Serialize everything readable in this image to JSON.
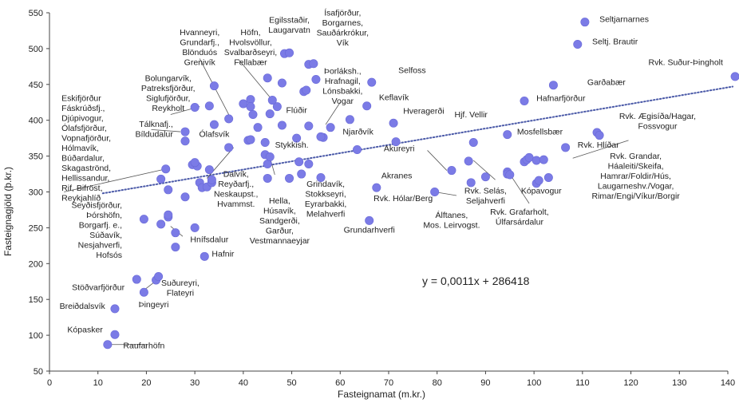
{
  "chart_data": {
    "type": "scatter",
    "xlabel": "Fasteignamat (m.kr.)",
    "ylabel": "Fasteignagjöld (þ.kr.)",
    "xlim": [
      0,
      140
    ],
    "ylim": [
      50,
      550
    ],
    "xticks": [
      0,
      10,
      20,
      30,
      40,
      50,
      60,
      70,
      80,
      90,
      100,
      110,
      120,
      130,
      140
    ],
    "yticks": [
      50,
      100,
      150,
      200,
      250,
      300,
      350,
      400,
      450,
      500,
      550
    ],
    "grid": false,
    "legend": "none",
    "point_color": "#7b7be6",
    "trendline": {
      "slope": 0.0011,
      "intercept": 286418,
      "x_from": 11,
      "x_to": 141,
      "y_from": 298,
      "y_to": 447,
      "color": "#4b5aa8",
      "style": "dotted"
    },
    "equation": "y = 0,0011x + 286418",
    "points": [
      [
        12,
        87
      ],
      [
        13.5,
        101
      ],
      [
        13.5,
        137
      ],
      [
        18,
        178
      ],
      [
        19.5,
        160
      ],
      [
        22,
        177
      ],
      [
        22.5,
        182
      ],
      [
        19.5,
        262
      ],
      [
        23,
        255
      ],
      [
        24.5,
        265
      ],
      [
        24.5,
        268
      ],
      [
        26,
        243
      ],
      [
        26,
        223
      ],
      [
        30,
        250
      ],
      [
        32,
        210
      ],
      [
        23,
        318
      ],
      [
        24.5,
        303
      ],
      [
        24,
        332
      ],
      [
        28,
        293
      ],
      [
        29.5,
        338
      ],
      [
        30.5,
        336
      ],
      [
        31,
        313
      ],
      [
        31.5,
        306
      ],
      [
        32.5,
        307
      ],
      [
        33.5,
        313
      ],
      [
        33.5,
        317
      ],
      [
        33,
        331
      ],
      [
        30,
        341
      ],
      [
        28,
        371
      ],
      [
        28,
        384
      ],
      [
        30,
        418
      ],
      [
        33,
        420
      ],
      [
        34,
        394
      ],
      [
        37,
        362
      ],
      [
        41,
        372
      ],
      [
        43,
        390
      ],
      [
        41.5,
        373
      ],
      [
        44.5,
        369
      ],
      [
        44.5,
        352
      ],
      [
        45,
        339
      ],
      [
        45.5,
        349
      ],
      [
        45,
        319
      ],
      [
        49.5,
        319
      ],
      [
        51.5,
        342
      ],
      [
        52,
        325
      ],
      [
        53.5,
        339
      ],
      [
        56,
        320
      ],
      [
        47,
        419
      ],
      [
        46,
        428
      ],
      [
        40,
        423
      ],
      [
        41.5,
        429
      ],
      [
        41.5,
        419
      ],
      [
        42,
        408
      ],
      [
        34,
        448
      ],
      [
        37,
        402
      ],
      [
        45,
        459
      ],
      [
        48,
        452
      ],
      [
        48.5,
        493
      ],
      [
        49.5,
        494
      ],
      [
        51,
        375
      ],
      [
        48,
        393
      ],
      [
        45.5,
        409
      ],
      [
        52.5,
        440
      ],
      [
        53,
        442
      ],
      [
        53.5,
        478
      ],
      [
        54.5,
        479
      ],
      [
        55,
        457
      ],
      [
        53.5,
        392
      ],
      [
        56.5,
        376
      ],
      [
        56,
        377
      ],
      [
        58,
        390
      ],
      [
        62,
        401
      ],
      [
        63.5,
        359
      ],
      [
        65.5,
        420
      ],
      [
        66.5,
        453
      ],
      [
        71.5,
        370
      ],
      [
        71,
        396
      ],
      [
        66,
        260
      ],
      [
        67.5,
        306
      ],
      [
        79.5,
        300
      ],
      [
        83,
        330
      ],
      [
        86.5,
        343
      ],
      [
        87,
        313
      ],
      [
        87.5,
        369
      ],
      [
        90,
        321
      ],
      [
        94.5,
        380
      ],
      [
        94.5,
        328
      ],
      [
        94.5,
        325
      ],
      [
        95,
        324
      ],
      [
        98,
        342
      ],
      [
        98.5,
        345
      ],
      [
        99,
        348
      ],
      [
        100.5,
        312
      ],
      [
        100.5,
        344
      ],
      [
        101,
        316
      ],
      [
        102,
        345
      ],
      [
        103,
        320
      ],
      [
        106.5,
        362
      ],
      [
        98,
        427
      ],
      [
        104,
        449
      ],
      [
        110.5,
        537
      ],
      [
        109,
        506
      ],
      [
        113,
        383
      ],
      [
        113.5,
        379
      ],
      [
        141.5,
        461
      ]
    ],
    "labels": [
      {
        "lines": [
          "Egilsstaðir,",
          "Laugarvatn"
        ],
        "x": 49.5,
        "y": 536,
        "anchor": "middle"
      },
      {
        "lines": [
          "Ísafjörður,",
          "Borgarnes,",
          "Sauðárkrókur,",
          "Vík"
        ],
        "x": 60.5,
        "y": 546,
        "anchor": "middle"
      },
      {
        "lines": [
          "Seltjarnarnes"
        ],
        "x": 113.5,
        "y": 537,
        "anchor": "start"
      },
      {
        "lines": [
          "Seltj. Brautir"
        ],
        "x": 112,
        "y": 506,
        "anchor": "start"
      },
      {
        "lines": [
          "Rvk. Suður-Þingholt"
        ],
        "x": 139,
        "y": 477,
        "anchor": "end"
      },
      {
        "lines": [
          "Hvanneyri,",
          "Grundarfj.,",
          "Blönduós",
          "Grenivík"
        ],
        "x": 31,
        "y": 519,
        "anchor": "middle"
      },
      {
        "lines": [
          "Höfn,",
          "Hvolsvöllur,",
          "Svalbarðseyri,",
          "Fellabær"
        ],
        "x": 41.5,
        "y": 519,
        "anchor": "middle"
      },
      {
        "lines": [
          "Þorláksh.,",
          "Hrafnagil,",
          "Lónsbakki,",
          "Vogar"
        ],
        "x": 60.5,
        "y": 465,
        "anchor": "middle"
      },
      {
        "lines": [
          "Selfoss"
        ],
        "x": 72,
        "y": 466,
        "anchor": "start"
      },
      {
        "lines": [
          "Garðabær"
        ],
        "x": 111,
        "y": 449,
        "anchor": "start"
      },
      {
        "lines": [
          "Bolungarvík,",
          "Patreksfjörður,",
          "Siglufjörður,",
          "Reykholt"
        ],
        "x": 24.5,
        "y": 455,
        "anchor": "middle"
      },
      {
        "lines": [
          "Eskifjörður",
          "Fáskrúðsfj.,",
          "Djúpivogur,",
          "Ólafsfjörður,",
          "Vopnafjörður,",
          "Hólmavík,",
          "Búðardalur,",
          "Skagaströnd,",
          "Hellissandur,",
          "Rif, Bifröst,",
          "Reykjahlíð"
        ],
        "x": 2.5,
        "y": 427,
        "anchor": "start"
      },
      {
        "lines": [
          "Keflavík"
        ],
        "x": 68,
        "y": 428,
        "anchor": "start"
      },
      {
        "lines": [
          "Hafnarfjörður"
        ],
        "x": 100.5,
        "y": 427,
        "anchor": "start"
      },
      {
        "lines": [
          "Flúðir"
        ],
        "x": 51,
        "y": 410,
        "anchor": "middle"
      },
      {
        "lines": [
          "Hjf. Vellir"
        ],
        "x": 87,
        "y": 404,
        "anchor": "middle"
      },
      {
        "lines": [
          "Hveragerði"
        ],
        "x": 73,
        "y": 409,
        "anchor": "start"
      },
      {
        "lines": [
          "Rvk. Ægisíða/Hagar,",
          "Fossvogur"
        ],
        "x": 125.5,
        "y": 402,
        "anchor": "middle"
      },
      {
        "lines": [
          "Tálknafj.,",
          "Bíldudalur"
        ],
        "x": 25.5,
        "y": 391,
        "anchor": "end"
      },
      {
        "lines": [
          "Ólafsvík"
        ],
        "x": 34,
        "y": 377,
        "anchor": "middle"
      },
      {
        "lines": [
          "Njarðvík"
        ],
        "x": 60.5,
        "y": 380,
        "anchor": "start"
      },
      {
        "lines": [
          "Mosfellsbær"
        ],
        "x": 96.5,
        "y": 380,
        "anchor": "start"
      },
      {
        "lines": [
          "Stykkish."
        ],
        "x": 50,
        "y": 362,
        "anchor": "middle"
      },
      {
        "lines": [
          "Akureyri"
        ],
        "x": 69,
        "y": 357,
        "anchor": "start"
      },
      {
        "lines": [
          "Rvk. Hlíðar"
        ],
        "x": 109,
        "y": 362,
        "anchor": "start"
      },
      {
        "lines": [
          "Rvk. Grandar,",
          "Háaleiti/Skeifa,",
          "Hamrar/Foldir/Hús,",
          "Laugarneshv./Vogar,",
          "Rimar/Engi/Víkur/Borgir"
        ],
        "x": 121,
        "y": 346,
        "anchor": "middle"
      },
      {
        "lines": [
          "Akranes"
        ],
        "x": 68.5,
        "y": 319,
        "anchor": "start"
      },
      {
        "lines": [
          "Grindavík,",
          "Stokkseyri,",
          "Eyrarbakki,",
          "Melahverfi"
        ],
        "x": 57,
        "y": 307,
        "anchor": "middle"
      },
      {
        "lines": [
          "Dalvík,",
          "Reyðarfj.,",
          "Neskaupst.,",
          "Hvammst."
        ],
        "x": 38.5,
        "y": 321,
        "anchor": "middle"
      },
      {
        "lines": [
          "Hella,",
          "Húsavík,",
          "Sandgerði,",
          "Garður,",
          "Vestmannaeyjar"
        ],
        "x": 47.5,
        "y": 284,
        "anchor": "middle"
      },
      {
        "lines": [
          "Kópavogur"
        ],
        "x": 101.5,
        "y": 298,
        "anchor": "middle"
      },
      {
        "lines": [
          "Rvk. Selás,",
          "Seljahverfi"
        ],
        "x": 90,
        "y": 298,
        "anchor": "middle"
      },
      {
        "lines": [
          "Rvk. Hólar/Berg"
        ],
        "x": 73,
        "y": 287,
        "anchor": "middle"
      },
      {
        "lines": [
          "Rvk. Grafarholt,",
          "Úlfarsárdalur"
        ],
        "x": 97,
        "y": 268,
        "anchor": "middle"
      },
      {
        "lines": [
          "Álftanes,",
          "Mos. Leirvogst."
        ],
        "x": 83,
        "y": 264,
        "anchor": "middle"
      },
      {
        "lines": [
          "Grundarhverfi"
        ],
        "x": 66,
        "y": 243,
        "anchor": "middle"
      },
      {
        "lines": [
          "Seyðisfjörður,",
          "Þórshöfn,",
          "Borgarfj. e.,",
          "Súðavík,",
          "Nesjahverfi,",
          "Hofsós"
        ],
        "x": 15,
        "y": 278,
        "anchor": "end"
      },
      {
        "lines": [
          "Hnífsdalur"
        ],
        "x": 33,
        "y": 230,
        "anchor": "middle"
      },
      {
        "lines": [
          "Hafnir"
        ],
        "x": 33.5,
        "y": 210,
        "anchor": "start"
      },
      {
        "lines": [
          "Stöðvarfjörður"
        ],
        "x": 15.5,
        "y": 163,
        "anchor": "end"
      },
      {
        "lines": [
          "Suðureyri,",
          "Flateyri"
        ],
        "x": 27,
        "y": 169,
        "anchor": "middle"
      },
      {
        "lines": [
          "Breiðdalsvík"
        ],
        "x": 11.5,
        "y": 137,
        "anchor": "end"
      },
      {
        "lines": [
          "Þingeyri"
        ],
        "x": 21.5,
        "y": 139,
        "anchor": "middle"
      },
      {
        "lines": [
          "Kópasker"
        ],
        "x": 11,
        "y": 104,
        "anchor": "end"
      },
      {
        "lines": [
          "Raufarhöfn"
        ],
        "x": 19.5,
        "y": 82,
        "anchor": "middle"
      }
    ],
    "leaders": [
      [
        3,
        300,
        24,
        332
      ],
      [
        31,
        486,
        37,
        408
      ],
      [
        39,
        485,
        46,
        428
      ],
      [
        60,
        425,
        57,
        394
      ],
      [
        25,
        408,
        31,
        419
      ],
      [
        21,
        387,
        27,
        384
      ],
      [
        32.5,
        319,
        38,
        362
      ],
      [
        78,
        358,
        82,
        330
      ],
      [
        92,
        317,
        87.5,
        344
      ],
      [
        99,
        284,
        95,
        325
      ],
      [
        46.5,
        324,
        45.5,
        348
      ],
      [
        27.5,
        238,
        25,
        252
      ],
      [
        19.5,
        163,
        22,
        176
      ],
      [
        20,
        87,
        12.5,
        87
      ],
      [
        119.5,
        372,
        108,
        347
      ],
      [
        84,
        295,
        79.5,
        300
      ]
    ]
  }
}
